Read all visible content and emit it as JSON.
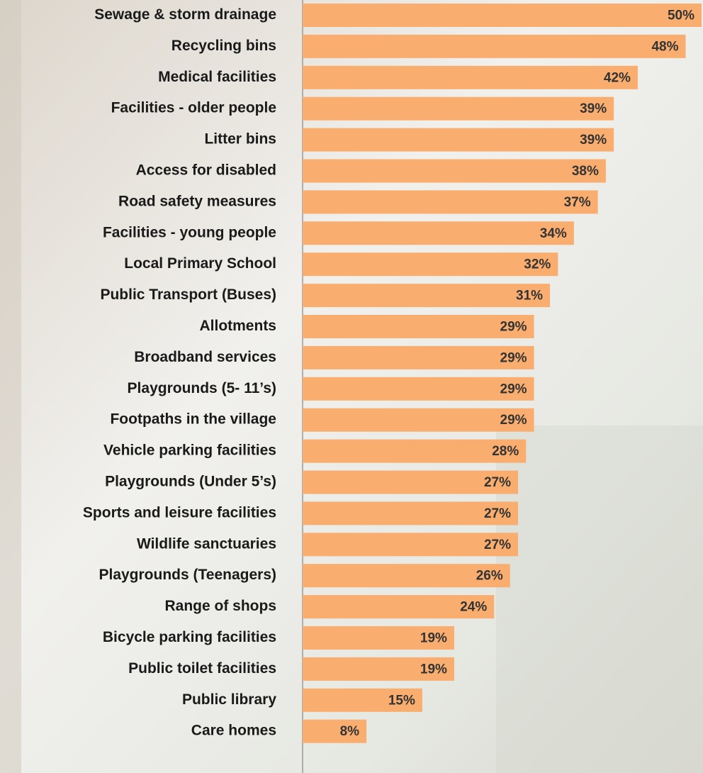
{
  "chart_data": {
    "type": "bar",
    "orientation": "horizontal",
    "categories": [
      "Sewage & storm drainage",
      "Recycling bins",
      "Medical facilities",
      "Facilities - older people",
      "Litter bins",
      "Access for disabled",
      "Road safety measures",
      "Facilities - young people",
      "Local Primary School",
      "Public Transport (Buses)",
      "Allotments",
      "Broadband services",
      "Playgrounds (5- 11’s)",
      "Footpaths in the village",
      "Vehicle parking facilities",
      "Playgrounds (Under 5’s)",
      "Sports and leisure facilities",
      "Wildlife sanctuaries",
      "Playgrounds (Teenagers)",
      "Range of shops",
      "Bicycle parking facilities",
      "Public toilet facilities",
      "Public library",
      "Care homes"
    ],
    "values": [
      50,
      48,
      42,
      39,
      39,
      38,
      37,
      34,
      32,
      31,
      29,
      29,
      29,
      29,
      28,
      27,
      27,
      27,
      26,
      24,
      19,
      19,
      15,
      8
    ],
    "value_labels": [
      "50%",
      "48%",
      "42%",
      "39%",
      "39%",
      "38%",
      "37%",
      "34%",
      "32%",
      "31%",
      "29%",
      "29%",
      "29%",
      "29%",
      "28%",
      "27%",
      "27%",
      "27%",
      "26%",
      "24%",
      "19%",
      "19%",
      "15%",
      "8%"
    ],
    "color": "#f9ad6e",
    "xlim": [
      0,
      50
    ]
  }
}
